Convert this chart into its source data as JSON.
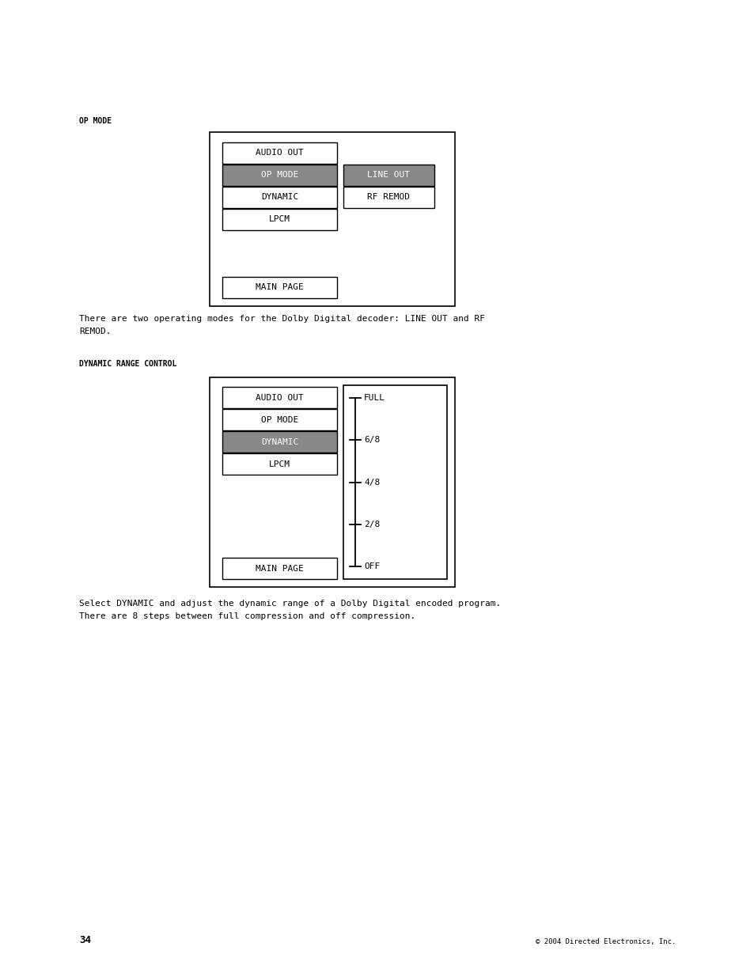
{
  "background_color": "#ffffff",
  "page_number": "34",
  "copyright_text": "© 2004 Directed Electronics, Inc.",
  "section1_label": "OP MODE",
  "section2_label": "DYNAMIC RANGE CONTROL",
  "section1_text": "There are two operating modes for the Dolby Digital decoder: LINE OUT and RF\nREMOD.",
  "section2_text": "Select DYNAMIC and adjust the dynamic range of a Dolby Digital encoded program.\nThere are 8 steps between full compression and off compression.",
  "gray_color": "#888888",
  "text_color": "#000000",
  "bold_label_fontsize": 7.0,
  "body_fontsize": 8.0,
  "button_fontsize": 8.0,
  "small_fontsize": 6.5,
  "diagram1": {
    "buttons_left": [
      {
        "label": "AUDIO OUT",
        "highlight": false
      },
      {
        "label": "OP MODE",
        "highlight": true
      },
      {
        "label": "DYNAMIC",
        "highlight": false
      },
      {
        "label": "LPCM",
        "highlight": false
      }
    ],
    "buttons_right": [
      {
        "label": "LINE OUT",
        "highlight": true
      },
      {
        "label": "RF REMOD",
        "highlight": false
      }
    ],
    "main_page_button": "MAIN PAGE"
  },
  "diagram2": {
    "buttons_left": [
      {
        "label": "AUDIO OUT",
        "highlight": false
      },
      {
        "label": "OP MODE",
        "highlight": false
      },
      {
        "label": "DYNAMIC",
        "highlight": true
      },
      {
        "label": "LPCM",
        "highlight": false
      }
    ],
    "slider_labels": [
      "FULL",
      "6/8",
      "4/8",
      "2/8",
      "OFF"
    ],
    "main_page_button": "MAIN PAGE"
  }
}
